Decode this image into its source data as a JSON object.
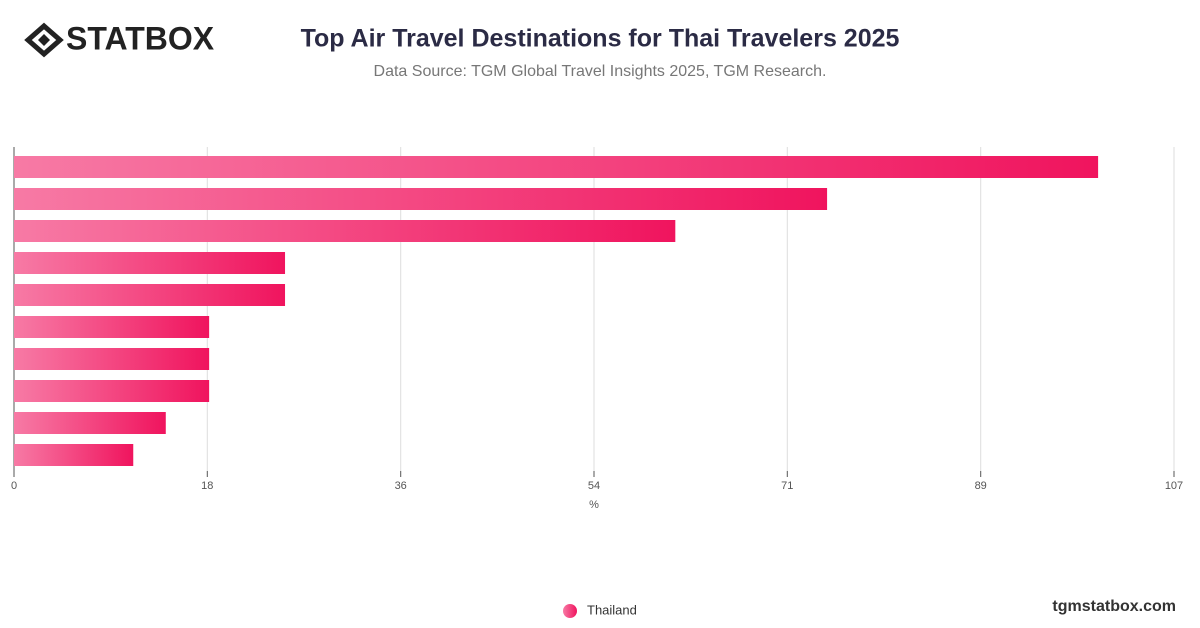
{
  "logo": "STATBOX",
  "footer": "tgmstatbox.com",
  "chart_data": {
    "type": "barh",
    "title": "Top Air Travel Destinations for Thai Travelers 2025",
    "subtitle": "Data Source: TGM Global Travel Insights 2025, TGM Research.",
    "x_label": "%",
    "categories": [
      null,
      null,
      null,
      null,
      null,
      null,
      null,
      null,
      null,
      null
    ],
    "series": [
      {
        "name": "Thailand",
        "color": "#f0145e",
        "values": [
          100,
          75,
          61,
          25,
          25,
          18,
          18,
          18,
          14,
          11
        ]
      }
    ],
    "xlim": [
      0,
      107
    ],
    "xticks": [
      0,
      {
        "value": 17.83,
        "label": "18"
      },
      {
        "value": 35.67,
        "label": "36"
      },
      {
        "value": 53.5,
        "label": "54"
      },
      {
        "value": 71.33,
        "label": "71"
      },
      {
        "value": 89.17,
        "label": "89"
      },
      107
    ],
    "grid": true,
    "legend": "bottom"
  }
}
